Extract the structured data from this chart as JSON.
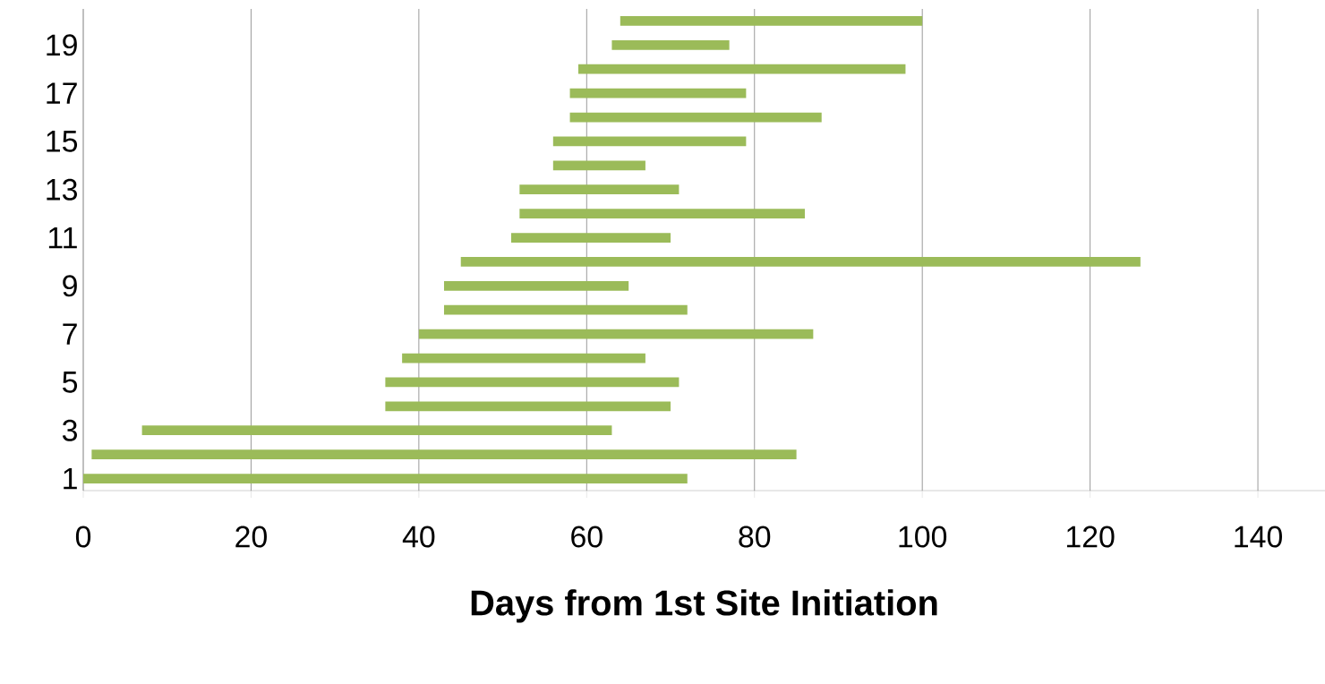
{
  "chart_data": {
    "type": "bar",
    "orientation": "horizontal",
    "xlabel": "Days from 1st Site Initiation",
    "categories": [
      null,
      "19",
      null,
      "17",
      null,
      "15",
      null,
      "13",
      null,
      "11",
      null,
      "9",
      null,
      "7",
      null,
      "5",
      null,
      "3",
      null,
      "1"
    ],
    "base": [
      64,
      63,
      59,
      58,
      58,
      56,
      56,
      52,
      52,
      51,
      45,
      43,
      43,
      40,
      38,
      36,
      36,
      7,
      1,
      0
    ],
    "values": [
      36,
      14,
      39,
      21,
      30,
      23,
      11,
      19,
      34,
      19,
      81,
      22,
      29,
      47,
      29,
      35,
      34,
      56,
      84,
      72
    ],
    "color": "#9bbb59",
    "xlim": [
      0,
      148
    ],
    "xticks": [
      0,
      20,
      40,
      60,
      80,
      100,
      120,
      140
    ],
    "grid": "x"
  }
}
